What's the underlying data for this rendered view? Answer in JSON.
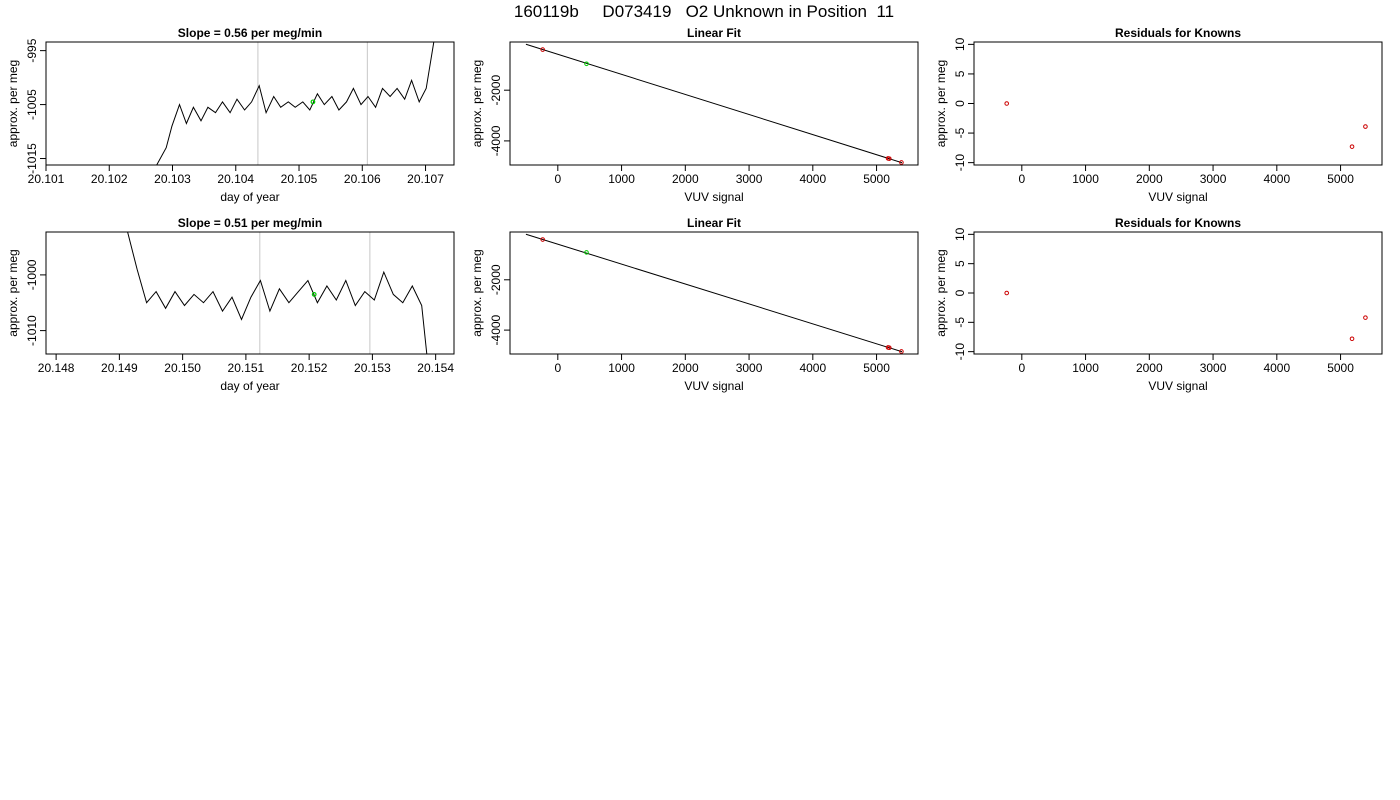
{
  "page": {
    "title": "160119b     D073419   O2 Unknown in Position  11"
  },
  "chart_data": [
    {
      "id": "p1",
      "type": "line",
      "title": "Slope =  0.56  per meg/min",
      "xlabel": "day of year",
      "ylabel": "approx. per meg",
      "xlim": [
        20.101,
        20.10745
      ],
      "ylim": [
        -1016.2,
        -993.4
      ],
      "xticks": [
        20.101,
        20.102,
        20.103,
        20.104,
        20.105,
        20.106,
        20.107
      ],
      "xtick_labels": [
        "20.101",
        "20.102",
        "20.103",
        "20.104",
        "20.105",
        "20.106",
        "20.107"
      ],
      "yticks": [
        -1015,
        -1005,
        -995
      ],
      "ytick_labels": [
        "-1015",
        "-1005",
        "-995"
      ],
      "vlines": [
        20.10435,
        20.10608
      ],
      "series": [
        {
          "color": "#000000",
          "x": [
            20.10275,
            20.1029,
            20.10299,
            20.10311,
            20.10322,
            20.10333,
            20.10345,
            20.10356,
            20.10368,
            20.10379,
            20.10391,
            20.10402,
            20.10414,
            20.10425,
            20.10437,
            20.10448,
            20.1046,
            20.10471,
            20.10483,
            20.10494,
            20.10506,
            20.10517,
            20.10529,
            20.1054,
            20.10552,
            20.10563,
            20.10575,
            20.10586,
            20.10598,
            20.10609,
            20.10621,
            20.10632,
            20.10644,
            20.10655,
            20.10667,
            20.10678,
            20.1069,
            20.10701,
            20.10713
          ],
          "y": [
            -1016.2,
            -1013,
            -1009,
            -1005,
            -1008.5,
            -1005.5,
            -1008,
            -1005.5,
            -1006.5,
            -1004.5,
            -1006.5,
            -1004,
            -1006,
            -1004.5,
            -1001.5,
            -1006.5,
            -1003.5,
            -1005.5,
            -1004.5,
            -1005.5,
            -1004.5,
            -1006,
            -1003,
            -1005,
            -1003.5,
            -1006,
            -1004.5,
            -1002,
            -1005,
            -1003.5,
            -1005.5,
            -1002,
            -1003.5,
            -1002,
            -1004,
            -1000.5,
            -1004.5,
            -1002,
            -993.4
          ]
        }
      ],
      "highlight": {
        "x": 20.10522,
        "y": -1004.5,
        "color": "#00cc00"
      }
    },
    {
      "id": "p2",
      "type": "scatter",
      "title": "Linear Fit",
      "xlabel": "VUV signal",
      "ylabel": "approx. per meg",
      "xlim": [
        -750,
        5650
      ],
      "ylim": [
        -4950,
        -100
      ],
      "xticks": [
        0,
        1000,
        2000,
        3000,
        4000,
        5000
      ],
      "xtick_labels": [
        "0",
        "1000",
        "2000",
        "3000",
        "4000",
        "5000"
      ],
      "yticks": [
        -4000,
        -2000
      ],
      "ytick_labels": [
        "-4000",
        "-2000"
      ],
      "fit_line": {
        "x": [
          -500,
          5400
        ],
        "y": [
          -188,
          -4860
        ]
      },
      "points": [
        {
          "x": -237,
          "y": -400,
          "color": "#cc0000"
        },
        {
          "x": 5180,
          "y": -4690,
          "color": "#cc0000"
        },
        {
          "x": 5200,
          "y": -4700,
          "color": "#cc0000"
        },
        {
          "x": 5390,
          "y": -4850,
          "color": "#cc0000"
        },
        {
          "x": 450,
          "y": -960,
          "color": "#00cc00"
        }
      ]
    },
    {
      "id": "p3",
      "type": "scatter",
      "title": "Residuals for Knowns",
      "xlabel": "VUV signal",
      "ylabel": "approx. per meg",
      "xlim": [
        -750,
        5650
      ],
      "ylim": [
        -10.4,
        10.4
      ],
      "xticks": [
        0,
        1000,
        2000,
        3000,
        4000,
        5000
      ],
      "xtick_labels": [
        "0",
        "1000",
        "2000",
        "3000",
        "4000",
        "5000"
      ],
      "yticks": [
        -10,
        -5,
        0,
        5,
        10
      ],
      "ytick_labels": [
        "-10",
        "-5",
        "0",
        "5",
        "10"
      ],
      "points": [
        {
          "x": -237,
          "y": 0,
          "color": "#cc0000"
        },
        {
          "x": 5180,
          "y": -7.3,
          "color": "#cc0000"
        },
        {
          "x": 5390,
          "y": -3.9,
          "color": "#cc0000"
        }
      ]
    },
    {
      "id": "p4",
      "type": "line",
      "title": "Slope =  0.51  per meg/min",
      "xlabel": "day of year",
      "ylabel": "approx. per meg",
      "xlim": [
        20.14784,
        20.15429
      ],
      "ylim": [
        -1014.2,
        -992.3
      ],
      "xticks": [
        20.148,
        20.149,
        20.15,
        20.151,
        20.152,
        20.153,
        20.154
      ],
      "xtick_labels": [
        "20.148",
        "20.149",
        "20.150",
        "20.151",
        "20.152",
        "20.153",
        "20.154"
      ],
      "yticks": [
        -1010,
        -1000
      ],
      "ytick_labels": [
        "-1010",
        "-1000"
      ],
      "vlines": [
        20.15122,
        20.15296
      ],
      "series": [
        {
          "color": "#000000",
          "x": [
            20.14913,
            20.14928,
            20.14943,
            20.14958,
            20.14973,
            20.14988,
            20.15003,
            20.15018,
            20.15033,
            20.15048,
            20.15063,
            20.15078,
            20.15093,
            20.15108,
            20.15123,
            20.15138,
            20.15153,
            20.15168,
            20.15183,
            20.15198,
            20.15213,
            20.15228,
            20.15243,
            20.15258,
            20.15273,
            20.15288,
            20.15303,
            20.15318,
            20.15333,
            20.15348,
            20.15363,
            20.15378,
            20.15386
          ],
          "y": [
            -992.3,
            -999,
            -1005,
            -1003,
            -1006,
            -1003,
            -1005.5,
            -1003.5,
            -1005,
            -1003,
            -1006.5,
            -1004,
            -1008,
            -1004,
            -1001,
            -1006.5,
            -1002.5,
            -1005,
            -1003,
            -1001,
            -1005,
            -1002,
            -1004.5,
            -1001,
            -1005.5,
            -1003,
            -1004.5,
            -999.5,
            -1003.5,
            -1005,
            -1002,
            -1005.5,
            -1014.2
          ]
        }
      ],
      "highlight": {
        "x": 20.15208,
        "y": -1003.5,
        "color": "#00cc00"
      }
    },
    {
      "id": "p5",
      "type": "scatter",
      "title": "Linear Fit",
      "xlabel": "VUV signal",
      "ylabel": "approx. per meg",
      "xlim": [
        -750,
        5650
      ],
      "ylim": [
        -4950,
        -100
      ],
      "xticks": [
        0,
        1000,
        2000,
        3000,
        4000,
        5000
      ],
      "xtick_labels": [
        "0",
        "1000",
        "2000",
        "3000",
        "4000",
        "5000"
      ],
      "yticks": [
        -4000,
        -2000
      ],
      "ytick_labels": [
        "-4000",
        "-2000"
      ],
      "fit_line": {
        "x": [
          -500,
          5400
        ],
        "y": [
          -188,
          -4860
        ]
      },
      "points": [
        {
          "x": -237,
          "y": -400,
          "color": "#cc0000"
        },
        {
          "x": 5180,
          "y": -4690,
          "color": "#cc0000"
        },
        {
          "x": 5200,
          "y": -4700,
          "color": "#cc0000"
        },
        {
          "x": 5390,
          "y": -4850,
          "color": "#cc0000"
        },
        {
          "x": 450,
          "y": -910,
          "color": "#00cc00"
        }
      ]
    },
    {
      "id": "p6",
      "type": "scatter",
      "title": "Residuals for Knowns",
      "xlabel": "VUV signal",
      "ylabel": "approx. per meg",
      "xlim": [
        -750,
        5650
      ],
      "ylim": [
        -10.4,
        10.4
      ],
      "xticks": [
        0,
        1000,
        2000,
        3000,
        4000,
        5000
      ],
      "xtick_labels": [
        "0",
        "1000",
        "2000",
        "3000",
        "4000",
        "5000"
      ],
      "yticks": [
        -10,
        -5,
        0,
        5,
        10
      ],
      "ytick_labels": [
        "-10",
        "-5",
        "0",
        "5",
        "10"
      ],
      "points": [
        {
          "x": -237,
          "y": 0,
          "color": "#cc0000"
        },
        {
          "x": 5180,
          "y": -7.8,
          "color": "#cc0000"
        },
        {
          "x": 5390,
          "y": -4.2,
          "color": "#cc0000"
        }
      ]
    }
  ]
}
